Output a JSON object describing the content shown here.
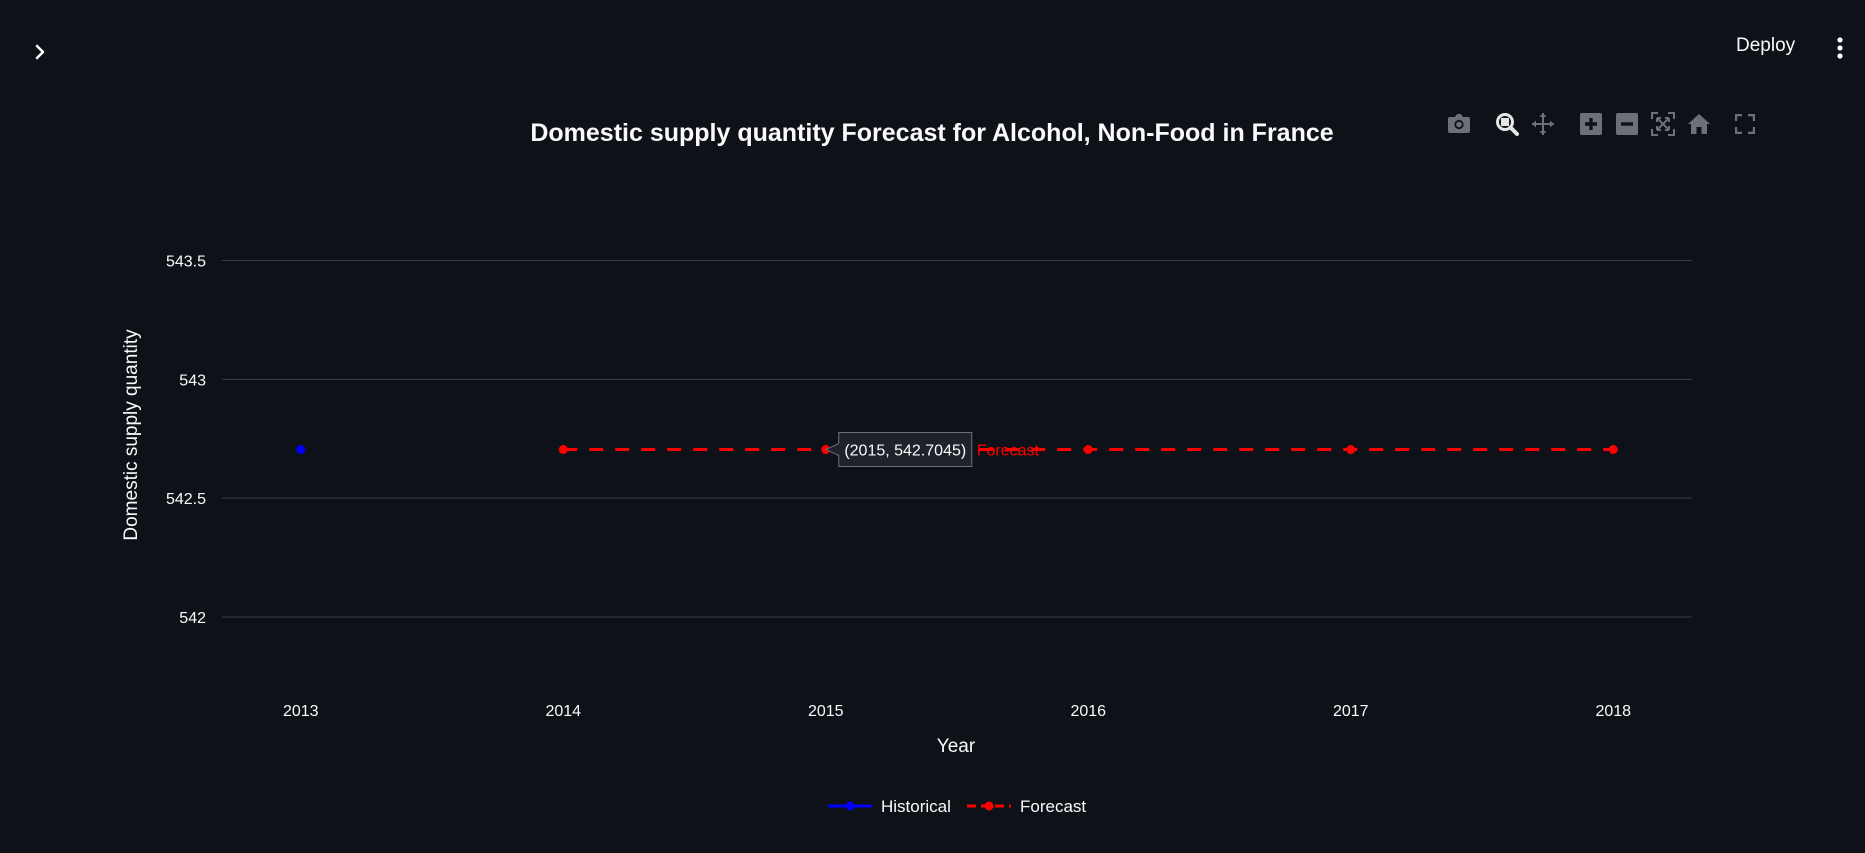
{
  "header": {
    "deploy_label": "Deploy",
    "expand_icon": "chevron-right-icon",
    "menu_icon": "vertical-dots-icon"
  },
  "modebar": {
    "buttons": [
      "camera-icon",
      "zoom-icon",
      "pan-icon",
      "zoom-in-icon",
      "zoom-out-icon",
      "autoscale-icon",
      "home-icon",
      "fullscreen-icon"
    ],
    "active": "zoom-icon"
  },
  "colors": {
    "background": "#0e1117",
    "historical": "#0000ff",
    "forecast": "#ff0000",
    "grid": "#3a3f4b"
  },
  "chart_data": {
    "type": "line",
    "title": "Domestic supply quantity Forecast for Alcohol, Non-Food in France",
    "xlabel": "Year",
    "ylabel": "Domestic supply quantity",
    "x_ticks": [
      "2013",
      "2014",
      "2015",
      "2016",
      "2017",
      "2018"
    ],
    "y_ticks": [
      "542",
      "542.5",
      "543",
      "543.5"
    ],
    "xlim": [
      2012.7,
      2018.3
    ],
    "ylim": [
      541.68,
      543.7
    ],
    "grid": true,
    "legend_position": "bottom-center",
    "series": [
      {
        "name": "Historical",
        "style": "solid",
        "color": "#0000ff",
        "x": [
          2013
        ],
        "y": [
          542.7045
        ]
      },
      {
        "name": "Forecast",
        "style": "dashed",
        "color": "#ff0000",
        "x": [
          2014,
          2015,
          2016,
          2017,
          2018
        ],
        "y": [
          542.7045,
          542.7045,
          542.7045,
          542.7045,
          542.7045
        ]
      }
    ],
    "hover": {
      "text": "(2015, 542.7045)",
      "label": "Forecast",
      "x": 2015,
      "y": 542.7045
    }
  }
}
